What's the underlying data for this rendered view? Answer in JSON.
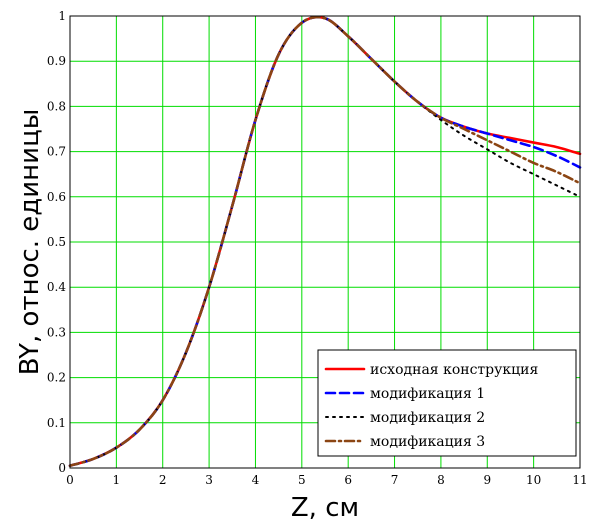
{
  "chart_data": {
    "type": "line",
    "xlabel": "Z, см",
    "ylabel": "BY, относ. единицы",
    "xlim": [
      0,
      11
    ],
    "ylim": [
      0,
      1
    ],
    "xticks": [
      "0",
      "1",
      "2",
      "3",
      "4",
      "5",
      "6",
      "7",
      "8",
      "9",
      "10",
      "11"
    ],
    "yticks": [
      "0",
      "0.1",
      "0.2",
      "0.3",
      "0.4",
      "0.5",
      "0.6",
      "0.7",
      "0.8",
      "0.9",
      "1"
    ],
    "grid": true,
    "legend_position": "bottom-right",
    "x": [
      0,
      0.5,
      1,
      1.5,
      2,
      2.5,
      3,
      3.5,
      4,
      4.5,
      5,
      5.5,
      6,
      6.5,
      7,
      7.5,
      8,
      8.5,
      9,
      9.5,
      10,
      10.5,
      11
    ],
    "series": [
      {
        "name": "исходная конструкция",
        "color": "#ff0000",
        "dash": "solid",
        "values": [
          0.005,
          0.02,
          0.045,
          0.085,
          0.15,
          0.255,
          0.4,
          0.58,
          0.77,
          0.915,
          0.985,
          0.995,
          0.955,
          0.905,
          0.855,
          0.81,
          0.775,
          0.755,
          0.74,
          0.73,
          0.72,
          0.71,
          0.695
        ]
      },
      {
        "name": "модификация 1",
        "color": "#0000ff",
        "dash": "dashed",
        "values": [
          0.005,
          0.02,
          0.045,
          0.085,
          0.15,
          0.255,
          0.4,
          0.58,
          0.77,
          0.915,
          0.985,
          0.995,
          0.955,
          0.905,
          0.855,
          0.81,
          0.775,
          0.755,
          0.74,
          0.725,
          0.71,
          0.69,
          0.665
        ]
      },
      {
        "name": "модификация 2",
        "color": "#000000",
        "dash": "dotted",
        "values": [
          0.005,
          0.02,
          0.045,
          0.085,
          0.15,
          0.255,
          0.4,
          0.58,
          0.77,
          0.915,
          0.985,
          0.995,
          0.955,
          0.905,
          0.855,
          0.81,
          0.77,
          0.735,
          0.705,
          0.675,
          0.65,
          0.625,
          0.6
        ]
      },
      {
        "name": "модификация 3",
        "color": "#8b4513",
        "dash": "dash-dot",
        "values": [
          0.005,
          0.02,
          0.045,
          0.085,
          0.15,
          0.255,
          0.4,
          0.58,
          0.77,
          0.915,
          0.985,
          0.995,
          0.955,
          0.905,
          0.855,
          0.81,
          0.775,
          0.75,
          0.725,
          0.7,
          0.675,
          0.655,
          0.63
        ]
      }
    ]
  }
}
